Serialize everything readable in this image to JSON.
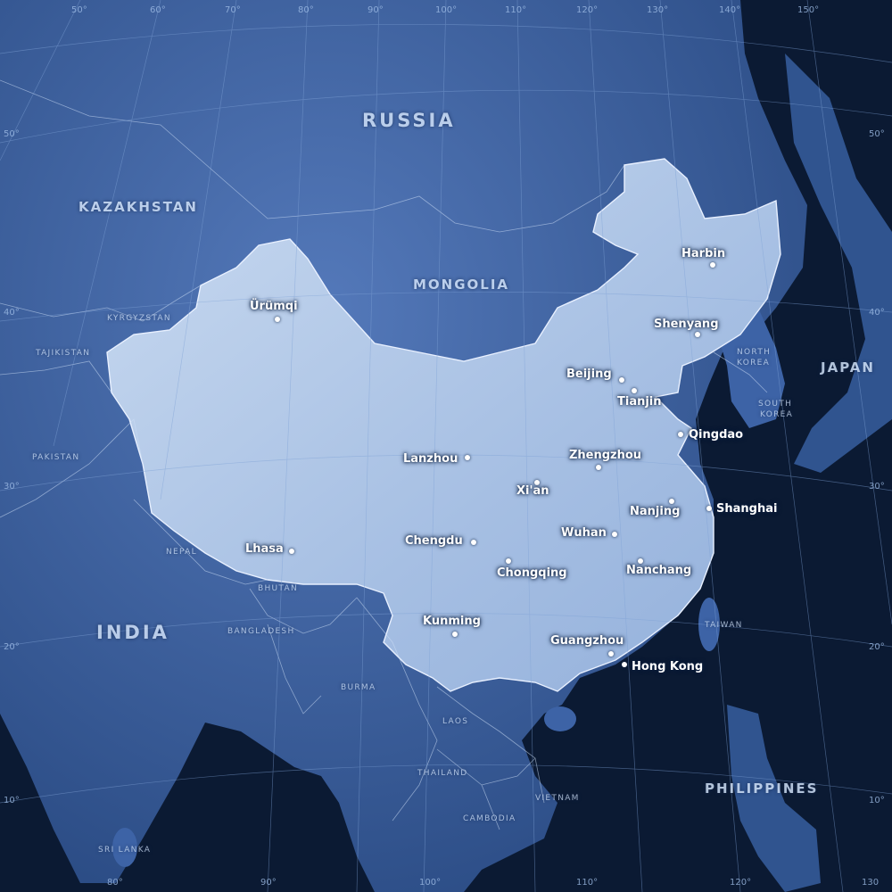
{
  "countries": {
    "russia": "RUSSIA",
    "kazakhstan": "KAZAKHSTAN",
    "mongolia": "MONGOLIA",
    "kyrgyzstan": "KYRGYZSTAN",
    "tajikistan": "TAJIKISTAN",
    "pakistan": "PAKISTAN",
    "nepal": "NEPAL",
    "bhutan": "BHUTAN",
    "india": "INDIA",
    "bangladesh": "BANGLADESH",
    "burma": "BURMA",
    "laos": "LAOS",
    "thailand": "THAILAND",
    "vietnam": "VIETNAM",
    "cambodia": "CAMBODIA",
    "sri_lanka": "SRI LANKA",
    "north_korea_1": "NORTH",
    "north_korea_2": "KOREA",
    "south_korea_1": "SOUTH",
    "south_korea_2": "KOREA",
    "japan": "JAPAN",
    "taiwan": "TAIWAN",
    "philippines": "PHILIPPINES"
  },
  "cities": [
    "Harbin",
    "Shenyang",
    "Beijing",
    "Tianjin",
    "Ürümqi",
    "Qingdao",
    "Lanzhou",
    "Zhengzhou",
    "Xi'an",
    "Nanjing",
    "Shanghai",
    "Chengdu",
    "Wuhan",
    "Lhasa",
    "Chongqing",
    "Nanchang",
    "Kunming",
    "Guangzhou",
    "Hong Kong"
  ],
  "longitudes_top": [
    "50°",
    "60°",
    "70°",
    "80°",
    "90°",
    "100°",
    "110°",
    "120°",
    "130°",
    "140°",
    "150°"
  ],
  "longitudes_bottom": [
    "80°",
    "90°",
    "100°",
    "110°",
    "120°",
    "130"
  ],
  "latitudes_left": [
    "50°",
    "40°",
    "30°",
    "20°",
    "10°"
  ],
  "latitudes_right": [
    "50°",
    "40°",
    "30°",
    "20°",
    "10°"
  ],
  "colors": {
    "ocean": "#0b1a33",
    "land": "#3d63a6",
    "china": "#b7cdea",
    "grid": "#7fa2d6",
    "border": "#e8f0ff"
  }
}
